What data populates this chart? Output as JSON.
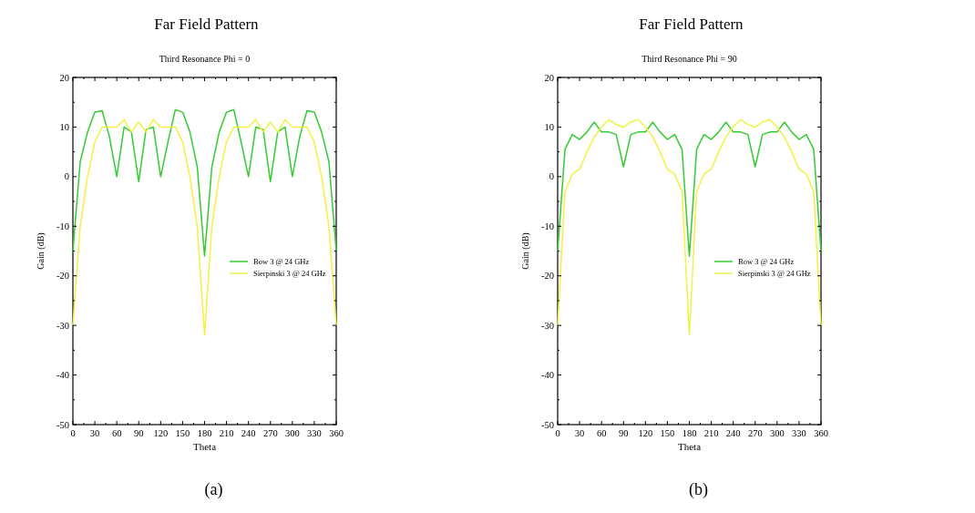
{
  "chart_data": [
    {
      "type": "line",
      "title": "Far Field Pattern",
      "subtitle": "Third Resonance  Phi = 0",
      "xlabel": "Theta",
      "ylabel": "Gain (dB)",
      "annotations": [
        "(a)"
      ],
      "x": [
        0,
        10,
        20,
        30,
        40,
        50,
        60,
        70,
        80,
        90,
        100,
        110,
        120,
        130,
        140,
        150,
        160,
        170,
        180,
        190,
        200,
        210,
        220,
        230,
        240,
        250,
        260,
        270,
        280,
        290,
        300,
        310,
        320,
        330,
        340,
        350,
        360
      ],
      "xlim": [
        0,
        360
      ],
      "xticks": [
        0,
        30,
        60,
        90,
        120,
        150,
        180,
        210,
        240,
        270,
        300,
        330,
        360
      ],
      "ylim": [
        -50,
        20
      ],
      "yticks": [
        -50,
        -40,
        -30,
        -20,
        -10,
        0,
        10,
        20
      ],
      "legend": "right",
      "grid": false,
      "series": [
        {
          "name": "Bow 3 @ 24 GHz",
          "color": "#33cc33",
          "values": [
            -15,
            3,
            9,
            13,
            13.3,
            8,
            0,
            10,
            9,
            -1,
            9.5,
            10,
            0,
            7,
            13.5,
            13,
            9,
            2,
            -16,
            2,
            9,
            13,
            13.5,
            7,
            0,
            10,
            9.5,
            -1,
            9,
            10,
            0,
            8,
            13.3,
            13,
            9,
            3,
            -15
          ]
        },
        {
          "name": "Sierpinski 3 @ 24 GHz",
          "color": "#f2f244",
          "values": [
            -30,
            -10,
            0,
            7,
            10,
            10,
            10,
            11.5,
            9,
            11,
            9,
            11.5,
            10,
            10,
            10,
            7,
            0,
            -10,
            -32,
            -10,
            0,
            7,
            10,
            10,
            10,
            11.5,
            9,
            11,
            9,
            11.5,
            10,
            10,
            10,
            7,
            0,
            -10,
            -30
          ]
        }
      ]
    },
    {
      "type": "line",
      "title": "Far Field Pattern",
      "subtitle": "Third Resonance  Phi = 90",
      "xlabel": "Theta",
      "ylabel": "Gain (dB)",
      "annotations": [
        "(b)"
      ],
      "x": [
        0,
        10,
        20,
        30,
        40,
        50,
        60,
        70,
        80,
        90,
        100,
        110,
        120,
        130,
        140,
        150,
        160,
        170,
        180,
        190,
        200,
        210,
        220,
        230,
        240,
        250,
        260,
        270,
        280,
        290,
        300,
        310,
        320,
        330,
        340,
        350,
        360
      ],
      "xlim": [
        0,
        360
      ],
      "xticks": [
        0,
        30,
        60,
        90,
        120,
        150,
        180,
        210,
        240,
        270,
        300,
        330,
        360
      ],
      "ylim": [
        -50,
        20
      ],
      "yticks": [
        -50,
        -40,
        -30,
        -20,
        -10,
        0,
        10,
        20
      ],
      "legend": "right",
      "grid": false,
      "series": [
        {
          "name": "Bow 3 @ 24 GHz",
          "color": "#33cc33",
          "values": [
            -15,
            5.5,
            8.5,
            7.5,
            9,
            11,
            9,
            9,
            8.5,
            2,
            8.5,
            9,
            9,
            11,
            9,
            7.5,
            8.5,
            5.5,
            -16,
            5.5,
            8.5,
            7.5,
            9,
            11,
            9,
            9,
            8.5,
            2,
            8.5,
            9,
            9,
            11,
            9,
            7.5,
            8.5,
            5.5,
            -15
          ]
        },
        {
          "name": "Sierpinski 3 @ 24 GHz",
          "color": "#f2f244",
          "values": [
            -30,
            -3,
            0.5,
            1.5,
            5,
            8,
            10,
            11.5,
            10.5,
            10,
            11,
            11.5,
            10,
            8,
            5,
            1.5,
            0.5,
            -3,
            -32,
            -3,
            0.5,
            1.5,
            5,
            8,
            10,
            11.5,
            10.5,
            10,
            11,
            11.5,
            10,
            8,
            5,
            1.5,
            0.5,
            -3,
            -30
          ]
        }
      ]
    }
  ]
}
